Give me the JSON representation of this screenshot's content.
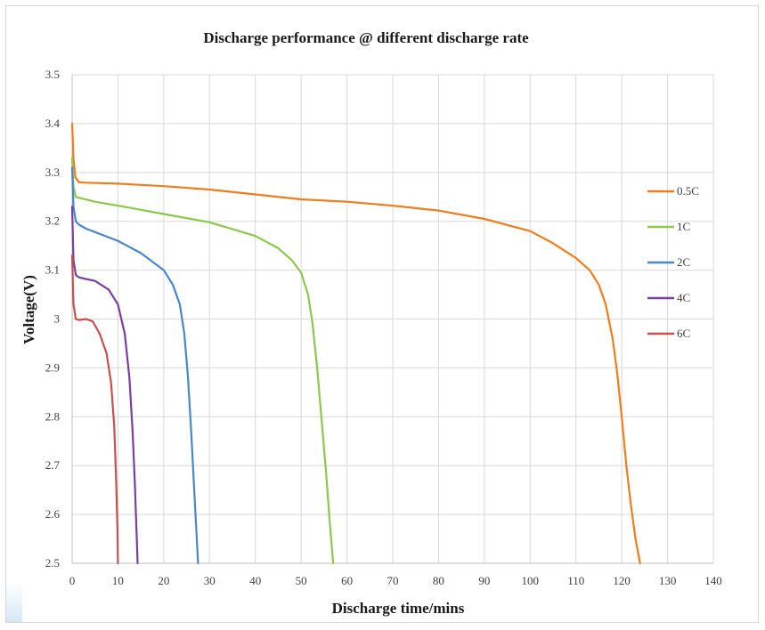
{
  "chart_data": {
    "type": "line",
    "title": "Discharge performance @ different discharge rate",
    "xlabel": "Discharge time/mins",
    "ylabel": "Voltage(V)",
    "xlim": [
      0,
      140
    ],
    "ylim": [
      2.5,
      3.5
    ],
    "xticks": [
      "0",
      "10",
      "20",
      "30",
      "40",
      "50",
      "60",
      "70",
      "80",
      "90",
      "100",
      "110",
      "120",
      "130",
      "140"
    ],
    "yticks": [
      "2.5",
      "2.6",
      "2.7",
      "2.8",
      "2.9",
      "3",
      "3.1",
      "3.2",
      "3.3",
      "3.4",
      "3.5"
    ],
    "grid": true,
    "legend_position": "right",
    "series": [
      {
        "name": "0.5C",
        "color": "#f07c1e",
        "x": [
          0,
          0.3,
          0.7,
          1.5,
          3,
          10,
          20,
          30,
          40,
          50,
          60,
          70,
          80,
          90,
          100,
          105,
          110,
          113,
          115,
          116.5,
          118,
          119,
          120,
          121,
          122,
          123,
          124
        ],
        "y": [
          3.4,
          3.33,
          3.29,
          3.28,
          3.279,
          3.277,
          3.272,
          3.265,
          3.255,
          3.245,
          3.24,
          3.232,
          3.222,
          3.205,
          3.18,
          3.155,
          3.125,
          3.1,
          3.07,
          3.03,
          2.96,
          2.89,
          2.8,
          2.7,
          2.62,
          2.55,
          2.5
        ]
      },
      {
        "name": "1C",
        "color": "#8cc84b",
        "x": [
          0,
          0.3,
          0.8,
          1.5,
          5,
          10,
          20,
          30,
          40,
          45,
          48,
          50,
          51.5,
          52.5,
          53.5,
          54.5,
          55.5,
          56.2,
          57
        ],
        "y": [
          3.33,
          3.27,
          3.25,
          3.248,
          3.24,
          3.232,
          3.215,
          3.198,
          3.17,
          3.145,
          3.12,
          3.095,
          3.05,
          2.99,
          2.9,
          2.79,
          2.68,
          2.59,
          2.5
        ]
      },
      {
        "name": "2C",
        "color": "#4a86c8",
        "x": [
          0,
          0.3,
          0.8,
          1.5,
          3,
          5,
          10,
          15,
          20,
          22,
          23.5,
          24.5,
          25.3,
          26,
          26.6,
          27.1,
          27.5
        ],
        "y": [
          3.31,
          3.23,
          3.2,
          3.193,
          3.185,
          3.178,
          3.16,
          3.135,
          3.1,
          3.07,
          3.03,
          2.97,
          2.88,
          2.77,
          2.66,
          2.57,
          2.5
        ]
      },
      {
        "name": "4C",
        "color": "#7a3fa0",
        "x": [
          0,
          0.3,
          0.8,
          1.5,
          3,
          5,
          8,
          10,
          11.5,
          12.5,
          13.2,
          13.7,
          14,
          14.2,
          14.3
        ],
        "y": [
          3.23,
          3.12,
          3.09,
          3.085,
          3.082,
          3.078,
          3.06,
          3.03,
          2.97,
          2.88,
          2.77,
          2.66,
          2.58,
          2.53,
          2.5
        ]
      },
      {
        "name": "6C",
        "color": "#c8504b",
        "x": [
          0,
          0.3,
          0.8,
          1.5,
          3,
          4.5,
          6,
          7.5,
          8.5,
          9.2,
          9.6,
          9.9,
          10
        ],
        "y": [
          3.13,
          3.03,
          3.0,
          2.998,
          3.0,
          2.995,
          2.97,
          2.93,
          2.87,
          2.78,
          2.67,
          2.57,
          2.5
        ]
      }
    ]
  }
}
